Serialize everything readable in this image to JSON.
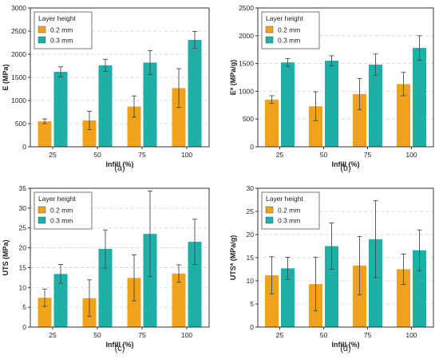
{
  "figure": {
    "colors": {
      "series_0_2": "#f0a31a",
      "series_0_3": "#1cb0a8",
      "frame": "#333333",
      "grid": "#d0d0d0",
      "error": "#4a4a4a"
    }
  },
  "chart_data": [
    {
      "type": "bar",
      "panel_label": "(a)",
      "xlabel": "Infill (%)",
      "ylabel": "E (MPa)",
      "categories": [
        "25",
        "50",
        "75",
        "100"
      ],
      "ylim": [
        0,
        3000
      ],
      "yticks": [
        0,
        500,
        1000,
        1500,
        2000,
        2500,
        3000
      ],
      "legend_title": "Layer height",
      "legend_position": "top-left",
      "grid": true,
      "series": [
        {
          "name": "0.2 mm",
          "values": [
            550,
            570,
            870,
            1270
          ],
          "errors": [
            50,
            200,
            230,
            420
          ]
        },
        {
          "name": "0.3 mm",
          "values": [
            1620,
            1760,
            1820,
            2310
          ],
          "errors": [
            110,
            130,
            260,
            180
          ]
        }
      ]
    },
    {
      "type": "bar",
      "panel_label": "(b)",
      "xlabel": "Infill (%)",
      "ylabel": "E* (MPa/g)",
      "categories": [
        "25",
        "50",
        "75",
        "100"
      ],
      "ylim": [
        0,
        2500
      ],
      "yticks": [
        0,
        500,
        1000,
        1500,
        2000,
        2500
      ],
      "legend_title": "Layer height",
      "legend_position": "top-left",
      "grid": true,
      "series": [
        {
          "name": "0.2 mm",
          "values": [
            850,
            730,
            950,
            1130
          ],
          "errors": [
            70,
            260,
            280,
            210
          ]
        },
        {
          "name": "0.3 mm",
          "values": [
            1520,
            1550,
            1480,
            1780
          ],
          "errors": [
            70,
            90,
            190,
            220
          ]
        }
      ]
    },
    {
      "type": "bar",
      "panel_label": "(c)",
      "xlabel": "Infill (%)",
      "ylabel": "UTS (MPa)",
      "categories": [
        "25",
        "50",
        "75",
        "100"
      ],
      "ylim": [
        0,
        35
      ],
      "yticks": [
        0,
        5,
        10,
        15,
        20,
        25,
        30,
        35
      ],
      "legend_title": "Layer height",
      "legend_position": "top-left",
      "grid": true,
      "series": [
        {
          "name": "0.2 mm",
          "values": [
            7.4,
            7.3,
            12.4,
            13.5
          ],
          "errors": [
            2.2,
            4.6,
            5.8,
            2.2
          ]
        },
        {
          "name": "0.3 mm",
          "values": [
            13.4,
            19.7,
            23.5,
            21.5
          ],
          "errors": [
            2.4,
            4.8,
            10.8,
            5.7
          ]
        }
      ]
    },
    {
      "type": "bar",
      "panel_label": "(d)",
      "xlabel": "Infill (%)",
      "ylabel": "UTS* (MPa/g)",
      "categories": [
        "25",
        "50",
        "75",
        "100"
      ],
      "ylim": [
        0,
        30
      ],
      "yticks": [
        0,
        5,
        10,
        15,
        20,
        25,
        30
      ],
      "legend_title": "Layer height",
      "legend_position": "top-left",
      "grid": true,
      "series": [
        {
          "name": "0.2 mm",
          "values": [
            11.2,
            9.3,
            13.3,
            12.5
          ],
          "errors": [
            4.0,
            5.8,
            6.3,
            3.3
          ]
        },
        {
          "name": "0.3 mm",
          "values": [
            12.7,
            17.5,
            19.0,
            16.6
          ],
          "errors": [
            2.4,
            5.0,
            8.3,
            4.4
          ]
        }
      ]
    }
  ]
}
